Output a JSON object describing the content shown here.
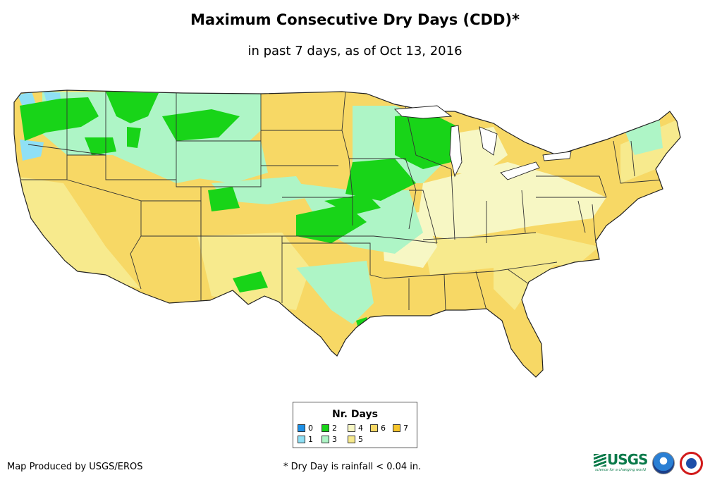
{
  "title": "Maximum Consecutive Dry Days (CDD)*",
  "subtitle": "in past 7 days, as of Oct 13, 2016",
  "legend": {
    "title": "Nr. Days",
    "items": [
      {
        "label": "0",
        "color": "#1e90e6"
      },
      {
        "label": "1",
        "color": "#8fe0f5"
      },
      {
        "label": "2",
        "color": "#18d418"
      },
      {
        "label": "3",
        "color": "#aef5c6"
      },
      {
        "label": "4",
        "color": "#f7f7c4"
      },
      {
        "label": "5",
        "color": "#f7ea8d"
      },
      {
        "label": "6",
        "color": "#f7d865"
      },
      {
        "label": "7",
        "color": "#f6c52c"
      }
    ]
  },
  "footer": {
    "credit": "Map Produced by USGS/EROS",
    "note": "* Dry Day is rainfall < 0.04 in."
  },
  "logos": {
    "usgs_text": "USGS",
    "usgs_tagline": "science for a changing world"
  }
}
